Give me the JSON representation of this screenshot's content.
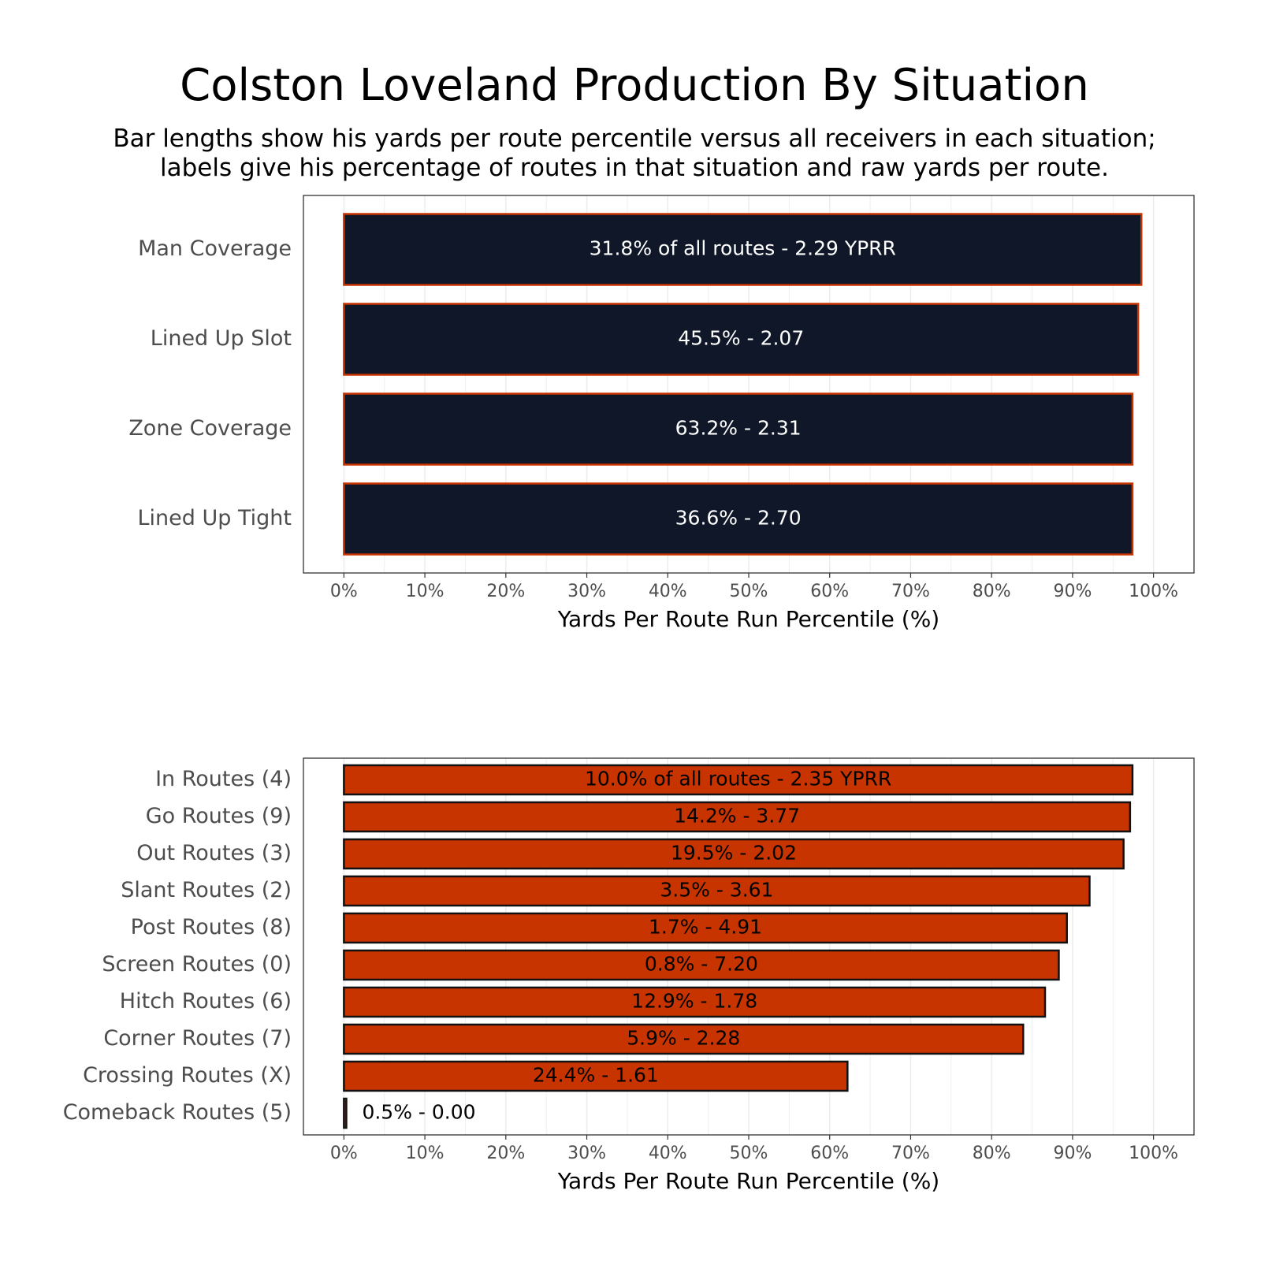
{
  "title": "Colston Loveland Production By Situation",
  "subtitle": [
    "Bar lengths show his yards per route percentile versus all receivers in each situation;",
    "labels give his percentage of routes in that situation and raw yards per route."
  ],
  "colors": {
    "navy_fill": "#0f1729",
    "orange_fill": "#c73400",
    "orange_border": "#c73400",
    "black_border": "#111111",
    "grid": "#ebebeb",
    "panel_border": "#333333"
  },
  "chart_data": [
    {
      "type": "bar",
      "orientation": "horizontal",
      "categories": [
        "Man Coverage",
        "Lined Up Slot",
        "Zone Coverage",
        "Lined Up Tight"
      ],
      "values": [
        98.5,
        98.1,
        97.4,
        97.4
      ],
      "labels": [
        "31.8% of all routes - 2.29 YPRR",
        "45.5% - 2.07",
        "63.2% - 2.31",
        "36.6% - 2.70"
      ],
      "xlabel": "Yards Per Route Run Percentile (%)",
      "xticks": [
        "0%",
        "10%",
        "20%",
        "30%",
        "40%",
        "50%",
        "60%",
        "70%",
        "80%",
        "90%",
        "100%"
      ],
      "xlim": [
        -5,
        105
      ],
      "bar_color": "#0f1729",
      "bar_border": "#c73400",
      "label_color": "#ffffff",
      "grid": true
    },
    {
      "type": "bar",
      "orientation": "horizontal",
      "categories": [
        "In Routes (4)",
        "Go Routes (9)",
        "Out Routes (3)",
        "Slant Routes (2)",
        "Post Routes (8)",
        "Screen Routes (0)",
        "Hitch Routes (6)",
        "Corner Routes (7)",
        "Crossing Routes (X)",
        "Comeback Routes (5)"
      ],
      "values": [
        97.4,
        97.1,
        96.3,
        92.1,
        89.3,
        88.3,
        86.6,
        83.9,
        62.2,
        0.3
      ],
      "labels": [
        "10.0% of all routes - 2.35 YPRR",
        "14.2% - 3.77",
        "19.5% - 2.02",
        "3.5% - 3.61",
        "1.7% - 4.91",
        "0.8% - 7.20",
        "12.9% - 1.78",
        "5.9% - 2.28",
        "24.4% - 1.61",
        "0.5% - 0.00"
      ],
      "xlabel": "Yards Per Route Run Percentile (%)",
      "xticks": [
        "0%",
        "10%",
        "20%",
        "30%",
        "40%",
        "50%",
        "60%",
        "70%",
        "80%",
        "90%",
        "100%"
      ],
      "xlim": [
        -5,
        105
      ],
      "bar_color": "#c73400",
      "bar_border": "#111111",
      "label_color": "#000000",
      "grid": true
    }
  ]
}
